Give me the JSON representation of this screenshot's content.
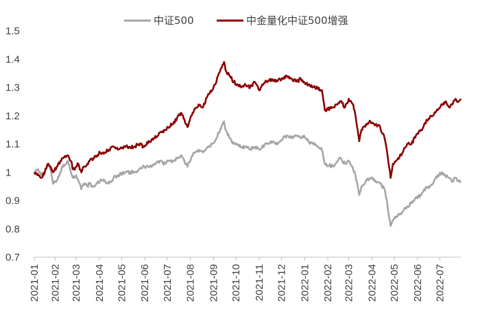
{
  "chart_data": {
    "type": "line",
    "title": "",
    "xlabel": "",
    "ylabel": "",
    "ylim": [
      0.7,
      1.5
    ],
    "yticks": [
      "0.7",
      "0.8",
      "0.9",
      "1",
      "1.1",
      "1.2",
      "1.3",
      "1.4",
      "1.5"
    ],
    "xticks": [
      "2021-01",
      "2021-02",
      "2021-03",
      "2021-04",
      "2021-05",
      "2021-06",
      "2021-07",
      "2021-08",
      "2021-09",
      "2021-10",
      "2021-11",
      "2021-12",
      "2022-01",
      "2022-02",
      "2022-03",
      "2022-04",
      "2022-05",
      "2022-06",
      "2022-07"
    ],
    "grid": false,
    "legend_position": "top-center",
    "x_start": "2021-01-04",
    "x_end": "2022-07-29",
    "series": [
      {
        "name": "中证500",
        "color": "#a6a6a6",
        "points": [
          [
            "2021-01-04",
            1.0
          ],
          [
            "2021-01-08",
            1.01
          ],
          [
            "2021-01-13",
            0.99
          ],
          [
            "2021-01-18",
            1.0
          ],
          [
            "2021-01-22",
            1.03
          ],
          [
            "2021-01-26",
            1.01
          ],
          [
            "2021-01-29",
            0.96
          ],
          [
            "2021-02-03",
            0.97
          ],
          [
            "2021-02-08",
            1.0
          ],
          [
            "2021-02-10",
            1.02
          ],
          [
            "2021-02-18",
            1.04
          ],
          [
            "2021-02-22",
            1.0
          ],
          [
            "2021-02-25",
            0.98
          ],
          [
            "2021-03-01",
            0.99
          ],
          [
            "2021-03-04",
            0.97
          ],
          [
            "2021-03-08",
            0.94
          ],
          [
            "2021-03-11",
            0.96
          ],
          [
            "2021-03-16",
            0.95
          ],
          [
            "2021-03-19",
            0.96
          ],
          [
            "2021-03-24",
            0.95
          ],
          [
            "2021-03-29",
            0.96
          ],
          [
            "2021-04-02",
            0.97
          ],
          [
            "2021-04-08",
            0.97
          ],
          [
            "2021-04-14",
            0.96
          ],
          [
            "2021-04-20",
            0.98
          ],
          [
            "2021-04-26",
            0.99
          ],
          [
            "2021-05-06",
            1.0
          ],
          [
            "2021-05-12",
            1.0
          ],
          [
            "2021-05-18",
            1.0
          ],
          [
            "2021-05-24",
            1.01
          ],
          [
            "2021-05-31",
            1.02
          ],
          [
            "2021-06-07",
            1.02
          ],
          [
            "2021-06-14",
            1.03
          ],
          [
            "2021-06-21",
            1.04
          ],
          [
            "2021-06-28",
            1.03
          ],
          [
            "2021-07-02",
            1.04
          ],
          [
            "2021-07-08",
            1.04
          ],
          [
            "2021-07-14",
            1.05
          ],
          [
            "2021-07-20",
            1.06
          ],
          [
            "2021-07-26",
            1.03
          ],
          [
            "2021-07-28",
            1.02
          ],
          [
            "2021-08-02",
            1.05
          ],
          [
            "2021-08-06",
            1.07
          ],
          [
            "2021-08-12",
            1.08
          ],
          [
            "2021-08-18",
            1.07
          ],
          [
            "2021-08-24",
            1.09
          ],
          [
            "2021-08-30",
            1.1
          ],
          [
            "2021-09-03",
            1.11
          ],
          [
            "2021-09-08",
            1.14
          ],
          [
            "2021-09-13",
            1.17
          ],
          [
            "2021-09-15",
            1.18
          ],
          [
            "2021-09-17",
            1.15
          ],
          [
            "2021-09-23",
            1.12
          ],
          [
            "2021-09-28",
            1.1
          ],
          [
            "2021-10-08",
            1.09
          ],
          [
            "2021-10-14",
            1.09
          ],
          [
            "2021-10-20",
            1.08
          ],
          [
            "2021-10-26",
            1.09
          ],
          [
            "2021-11-01",
            1.08
          ],
          [
            "2021-11-05",
            1.09
          ],
          [
            "2021-11-11",
            1.1
          ],
          [
            "2021-11-17",
            1.11
          ],
          [
            "2021-11-23",
            1.1
          ],
          [
            "2021-11-29",
            1.11
          ],
          [
            "2021-12-03",
            1.12
          ],
          [
            "2021-12-09",
            1.13
          ],
          [
            "2021-12-15",
            1.12
          ],
          [
            "2021-12-21",
            1.13
          ],
          [
            "2021-12-27",
            1.12
          ],
          [
            "2021-12-31",
            1.13
          ],
          [
            "2022-01-06",
            1.11
          ],
          [
            "2022-01-12",
            1.1
          ],
          [
            "2022-01-18",
            1.09
          ],
          [
            "2022-01-24",
            1.08
          ],
          [
            "2022-01-28",
            1.03
          ],
          [
            "2022-02-08",
            1.02
          ],
          [
            "2022-02-14",
            1.04
          ],
          [
            "2022-02-18",
            1.05
          ],
          [
            "2022-02-24",
            1.03
          ],
          [
            "2022-03-01",
            1.04
          ],
          [
            "2022-03-07",
            1.01
          ],
          [
            "2022-03-10",
            0.99
          ],
          [
            "2022-03-15",
            0.92
          ],
          [
            "2022-03-18",
            0.95
          ],
          [
            "2022-03-24",
            0.97
          ],
          [
            "2022-03-30",
            0.98
          ],
          [
            "2022-04-06",
            0.97
          ],
          [
            "2022-04-12",
            0.96
          ],
          [
            "2022-04-18",
            0.94
          ],
          [
            "2022-04-22",
            0.88
          ],
          [
            "2022-04-26",
            0.81
          ],
          [
            "2022-04-29",
            0.83
          ],
          [
            "2022-05-06",
            0.85
          ],
          [
            "2022-05-12",
            0.86
          ],
          [
            "2022-05-18",
            0.88
          ],
          [
            "2022-05-24",
            0.89
          ],
          [
            "2022-05-30",
            0.91
          ],
          [
            "2022-06-06",
            0.92
          ],
          [
            "2022-06-10",
            0.94
          ],
          [
            "2022-06-16",
            0.95
          ],
          [
            "2022-06-22",
            0.96
          ],
          [
            "2022-06-28",
            0.99
          ],
          [
            "2022-07-04",
            1.0
          ],
          [
            "2022-07-08",
            0.99
          ],
          [
            "2022-07-13",
            0.98
          ],
          [
            "2022-07-18",
            0.97
          ],
          [
            "2022-07-22",
            0.98
          ],
          [
            "2022-07-26",
            0.97
          ],
          [
            "2022-07-29",
            0.97
          ]
        ]
      },
      {
        "name": "中金量化中证500增强",
        "color": "#8b0000",
        "points": [
          [
            "2021-01-04",
            1.0
          ],
          [
            "2021-01-08",
            0.99
          ],
          [
            "2021-01-13",
            0.98
          ],
          [
            "2021-01-18",
            1.0
          ],
          [
            "2021-01-22",
            1.03
          ],
          [
            "2021-01-26",
            1.02
          ],
          [
            "2021-01-29",
            1.0
          ],
          [
            "2021-02-03",
            1.02
          ],
          [
            "2021-02-08",
            1.04
          ],
          [
            "2021-02-10",
            1.05
          ],
          [
            "2021-02-18",
            1.06
          ],
          [
            "2021-02-22",
            1.04
          ],
          [
            "2021-02-25",
            1.01
          ],
          [
            "2021-03-01",
            1.02
          ],
          [
            "2021-03-04",
            1.03
          ],
          [
            "2021-03-08",
            1.0
          ],
          [
            "2021-03-11",
            1.02
          ],
          [
            "2021-03-16",
            1.03
          ],
          [
            "2021-03-19",
            1.04
          ],
          [
            "2021-03-24",
            1.05
          ],
          [
            "2021-03-29",
            1.06
          ],
          [
            "2021-04-02",
            1.07
          ],
          [
            "2021-04-08",
            1.07
          ],
          [
            "2021-04-14",
            1.08
          ],
          [
            "2021-04-20",
            1.09
          ],
          [
            "2021-04-26",
            1.08
          ],
          [
            "2021-05-06",
            1.09
          ],
          [
            "2021-05-12",
            1.09
          ],
          [
            "2021-05-18",
            1.09
          ],
          [
            "2021-05-24",
            1.1
          ],
          [
            "2021-05-31",
            1.09
          ],
          [
            "2021-06-07",
            1.11
          ],
          [
            "2021-06-14",
            1.12
          ],
          [
            "2021-06-21",
            1.14
          ],
          [
            "2021-06-28",
            1.15
          ],
          [
            "2021-07-02",
            1.16
          ],
          [
            "2021-07-08",
            1.17
          ],
          [
            "2021-07-14",
            1.19
          ],
          [
            "2021-07-20",
            1.21
          ],
          [
            "2021-07-26",
            1.17
          ],
          [
            "2021-07-28",
            1.16
          ],
          [
            "2021-08-02",
            1.2
          ],
          [
            "2021-08-06",
            1.22
          ],
          [
            "2021-08-12",
            1.24
          ],
          [
            "2021-08-18",
            1.23
          ],
          [
            "2021-08-24",
            1.27
          ],
          [
            "2021-08-30",
            1.29
          ],
          [
            "2021-09-03",
            1.31
          ],
          [
            "2021-09-08",
            1.35
          ],
          [
            "2021-09-13",
            1.38
          ],
          [
            "2021-09-15",
            1.39
          ],
          [
            "2021-09-17",
            1.36
          ],
          [
            "2021-09-23",
            1.34
          ],
          [
            "2021-09-28",
            1.32
          ],
          [
            "2021-10-08",
            1.3
          ],
          [
            "2021-10-14",
            1.31
          ],
          [
            "2021-10-20",
            1.3
          ],
          [
            "2021-10-26",
            1.32
          ],
          [
            "2021-11-01",
            1.29
          ],
          [
            "2021-11-05",
            1.31
          ],
          [
            "2021-11-11",
            1.32
          ],
          [
            "2021-11-17",
            1.33
          ],
          [
            "2021-11-23",
            1.32
          ],
          [
            "2021-11-29",
            1.33
          ],
          [
            "2021-12-03",
            1.33
          ],
          [
            "2021-12-09",
            1.34
          ],
          [
            "2021-12-15",
            1.33
          ],
          [
            "2021-12-21",
            1.32
          ],
          [
            "2021-12-27",
            1.33
          ],
          [
            "2021-12-31",
            1.32
          ],
          [
            "2022-01-06",
            1.31
          ],
          [
            "2022-01-12",
            1.3
          ],
          [
            "2022-01-18",
            1.3
          ],
          [
            "2022-01-24",
            1.29
          ],
          [
            "2022-01-28",
            1.22
          ],
          [
            "2022-02-08",
            1.23
          ],
          [
            "2022-02-14",
            1.24
          ],
          [
            "2022-02-18",
            1.25
          ],
          [
            "2022-02-24",
            1.23
          ],
          [
            "2022-03-01",
            1.26
          ],
          [
            "2022-03-07",
            1.24
          ],
          [
            "2022-03-10",
            1.2
          ],
          [
            "2022-03-15",
            1.11
          ],
          [
            "2022-03-18",
            1.15
          ],
          [
            "2022-03-24",
            1.17
          ],
          [
            "2022-03-30",
            1.18
          ],
          [
            "2022-04-06",
            1.17
          ],
          [
            "2022-04-12",
            1.16
          ],
          [
            "2022-04-18",
            1.12
          ],
          [
            "2022-04-22",
            1.06
          ],
          [
            "2022-04-26",
            0.98
          ],
          [
            "2022-04-29",
            1.03
          ],
          [
            "2022-05-06",
            1.05
          ],
          [
            "2022-05-12",
            1.07
          ],
          [
            "2022-05-18",
            1.1
          ],
          [
            "2022-05-24",
            1.1
          ],
          [
            "2022-05-30",
            1.13
          ],
          [
            "2022-06-06",
            1.15
          ],
          [
            "2022-06-10",
            1.17
          ],
          [
            "2022-06-16",
            1.19
          ],
          [
            "2022-06-22",
            1.2
          ],
          [
            "2022-06-28",
            1.22
          ],
          [
            "2022-07-04",
            1.24
          ],
          [
            "2022-07-08",
            1.25
          ],
          [
            "2022-07-13",
            1.23
          ],
          [
            "2022-07-18",
            1.24
          ],
          [
            "2022-07-22",
            1.26
          ],
          [
            "2022-07-26",
            1.25
          ],
          [
            "2022-07-29",
            1.26
          ]
        ]
      }
    ]
  }
}
